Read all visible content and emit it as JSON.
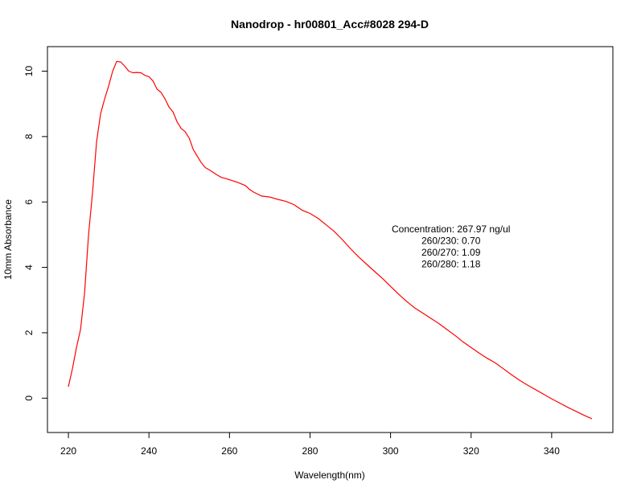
{
  "chart_data": {
    "type": "line",
    "title": "Nanodrop - hr00801_Acc#8028 294-D",
    "xlabel": "Wavelength(nm)",
    "ylabel": "10mm Absorbance",
    "xlim": [
      214.8,
      355.2
    ],
    "ylim": [
      -1.05,
      10.75
    ],
    "x_ticks": [
      220,
      240,
      260,
      280,
      300,
      320,
      340
    ],
    "y_ticks": [
      0,
      2,
      4,
      6,
      8,
      10
    ],
    "grid": false,
    "series": [
      {
        "color": "#ff0000",
        "x": [
          220,
          221,
          222,
          223,
          224,
          225,
          226,
          227,
          228,
          229,
          230,
          231,
          232,
          233,
          234,
          235,
          236,
          237,
          238,
          239,
          240,
          241,
          242,
          243,
          244,
          245,
          246,
          247,
          248,
          249,
          250,
          251,
          252,
          253,
          254,
          255,
          256,
          257,
          258,
          259,
          260,
          262,
          264,
          265,
          266,
          268,
          270,
          272,
          274,
          276,
          278,
          280,
          282,
          284,
          286,
          288,
          290,
          292,
          294,
          296,
          298,
          300,
          302,
          304,
          306,
          308,
          310,
          312,
          314,
          316,
          318,
          320,
          322,
          324,
          326,
          328,
          330,
          332,
          334,
          336,
          338,
          340,
          342,
          344,
          346,
          348,
          350
        ],
        "y": [
          0.35,
          0.9,
          1.55,
          2.1,
          3.2,
          5.0,
          6.3,
          7.85,
          8.7,
          9.15,
          9.55,
          10.0,
          10.3,
          10.28,
          10.15,
          10.0,
          9.95,
          9.96,
          9.95,
          9.87,
          9.83,
          9.7,
          9.45,
          9.35,
          9.15,
          8.9,
          8.75,
          8.45,
          8.25,
          8.15,
          7.95,
          7.6,
          7.4,
          7.2,
          7.05,
          6.98,
          6.9,
          6.82,
          6.75,
          6.72,
          6.68,
          6.6,
          6.5,
          6.38,
          6.3,
          6.18,
          6.15,
          6.08,
          6.02,
          5.92,
          5.75,
          5.65,
          5.5,
          5.3,
          5.1,
          4.85,
          4.58,
          4.33,
          4.1,
          3.88,
          3.66,
          3.42,
          3.18,
          2.96,
          2.76,
          2.6,
          2.44,
          2.28,
          2.1,
          1.92,
          1.72,
          1.55,
          1.38,
          1.22,
          1.08,
          0.9,
          0.72,
          0.55,
          0.4,
          0.26,
          0.12,
          -0.02,
          -0.15,
          -0.28,
          -0.4,
          -0.52,
          -0.63
        ]
      }
    ],
    "annotation": {
      "x": 315,
      "lines": [
        "Concentration: 267.97 ng/ul",
        "260/230: 0.70",
        "260/270: 1.09",
        "260/280: 1.18"
      ]
    }
  }
}
